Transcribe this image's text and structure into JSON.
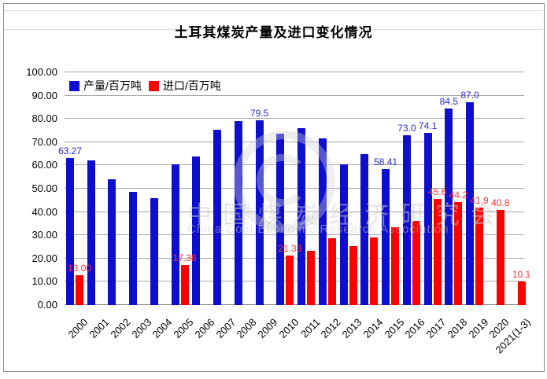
{
  "watermark": {
    "line1": "中国煤炭经济研究会",
    "line2": "China Coal Economic Research Association"
  },
  "chart_data": {
    "type": "bar",
    "title": "土耳其煤炭产量及进口变化情况",
    "categories": [
      "2000",
      "2001",
      "2002",
      "2003",
      "2004",
      "2005",
      "2006",
      "2007",
      "2008",
      "2009",
      "2010",
      "2011",
      "2012",
      "2013",
      "2014",
      "2015",
      "2016",
      "2017",
      "2018",
      "2019",
      "2020",
      "2021(1-3)"
    ],
    "series": [
      {
        "name": "产量/百万吨",
        "color": "#0e0ece",
        "label_color": "#2b2bcb",
        "values": [
          63.27,
          62.0,
          54.0,
          48.5,
          46.0,
          60.5,
          64.0,
          75.5,
          79.0,
          79.5,
          73.5,
          76.0,
          71.5,
          60.5,
          65.0,
          58.41,
          73.0,
          74.1,
          84.5,
          87.0,
          null,
          null
        ],
        "labels": {
          "0": "63.27",
          "9": "79.5",
          "15": "58.41",
          "16": "73.0",
          "17": "74.1",
          "18": "84.5",
          "19": "87.0"
        }
      },
      {
        "name": "进口/百万吨",
        "color": "#fe0000",
        "label_color": "#ff3333",
        "values": [
          13.0,
          null,
          null,
          null,
          null,
          17.36,
          null,
          null,
          null,
          null,
          21.33,
          23.4,
          28.6,
          25.5,
          29.0,
          33.5,
          36.0,
          45.6,
          44.2,
          41.9,
          40.8,
          10.1
        ],
        "labels": {
          "0": "13.00",
          "5": "17.36",
          "10": "21.33",
          "17": "45.6",
          "18": "44.2",
          "19": "41.9",
          "20": "40.8",
          "21": "10.1"
        }
      }
    ],
    "ylim": [
      0,
      100
    ],
    "ytick_step": 10,
    "ytick_labels": [
      "0.00",
      "10.00",
      "20.00",
      "30.00",
      "40.00",
      "50.00",
      "60.00",
      "70.00",
      "80.00",
      "90.00",
      "100.00"
    ],
    "grid": true,
    "legend_position": "top-left"
  }
}
